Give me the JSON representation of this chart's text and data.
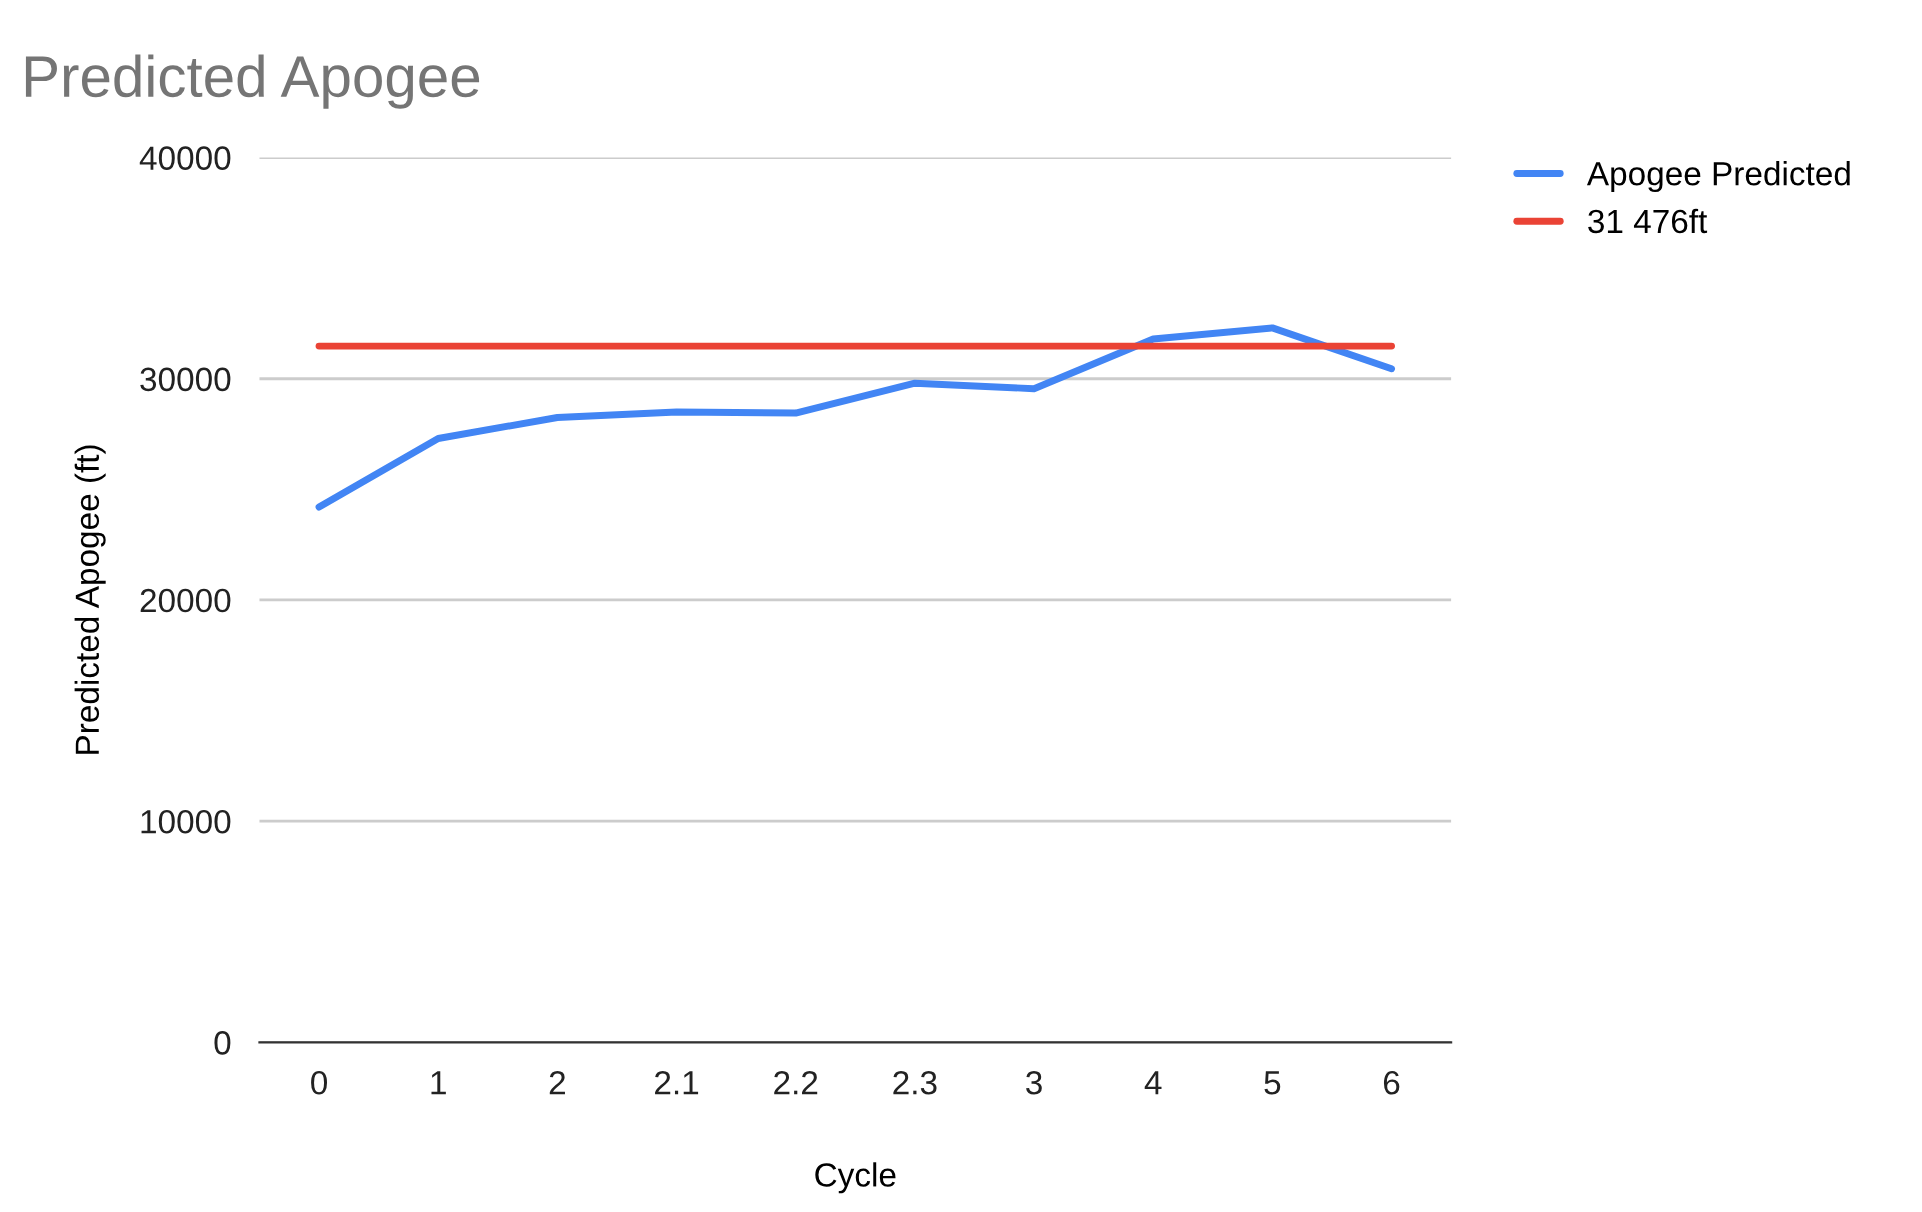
{
  "chart_data": {
    "type": "line",
    "title": "Predicted Apogee",
    "xlabel": "Cycle",
    "ylabel": "Predicted Apogee (ft)",
    "categories": [
      "0",
      "1",
      "2",
      "2.1",
      "2.2",
      "2.3",
      "3",
      "4",
      "5",
      "6"
    ],
    "series": [
      {
        "name": "Apogee Predicted",
        "color": "#4285f4",
        "values": [
          24200,
          27300,
          28250,
          28500,
          28450,
          29800,
          29550,
          31800,
          32300,
          30450
        ]
      },
      {
        "name": "31 476ft",
        "color": "#ea4335",
        "values": [
          31476,
          31476,
          31476,
          31476,
          31476,
          31476,
          31476,
          31476,
          31476,
          31476
        ]
      }
    ],
    "ylim": [
      0,
      40000
    ],
    "yticks": [
      0,
      10000,
      20000,
      30000,
      40000
    ],
    "grid": "y",
    "legend": "top right",
    "marker": "none",
    "line_style": "solid"
  }
}
